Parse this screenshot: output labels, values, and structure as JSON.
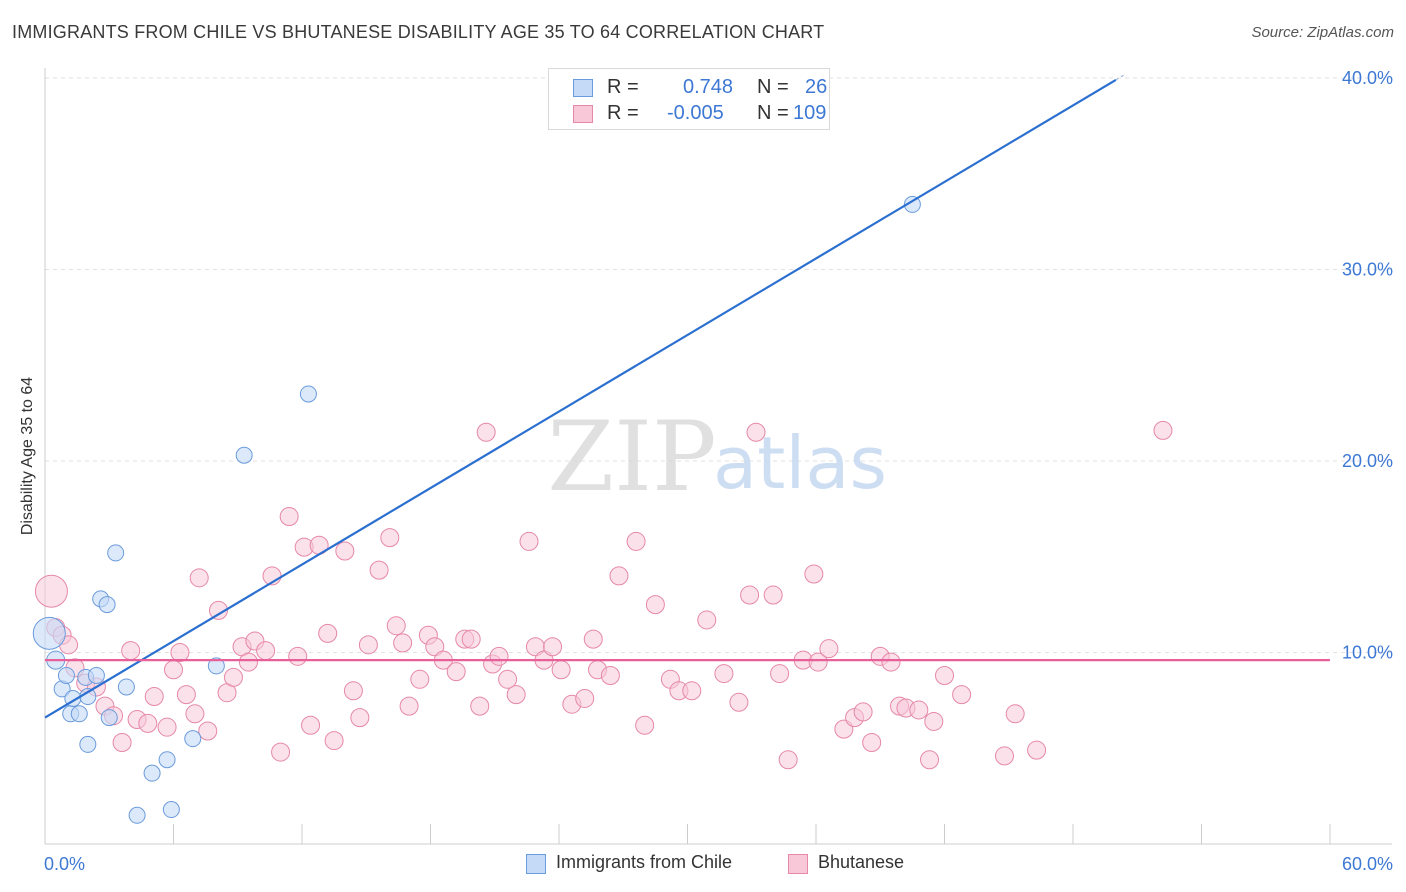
{
  "title": "IMMIGRANTS FROM CHILE VS BHUTANESE DISABILITY AGE 35 TO 64 CORRELATION CHART",
  "source": "Source: ZipAtlas.com",
  "watermark": {
    "zip": "ZIP",
    "atlas": "atlas"
  },
  "colors": {
    "chile_fill": "#c5daf6",
    "chile_stroke": "#6b9bdc",
    "chile_line": "#2b6fd0",
    "bhutan_fill": "#f8c8d8",
    "bhutan_stroke": "#e688a8",
    "bhutan_line": "#e8609a",
    "axis_text": "#3d78d4",
    "grid": "#e2e2e2"
  },
  "stats": {
    "rows": [
      {
        "r_label": "R = ",
        "r_value": "0.748",
        "n_label": "N = ",
        "n_value": "26"
      },
      {
        "r_label": "R = ",
        "r_value": "-0.005",
        "n_label": "N = ",
        "n_value": "109"
      }
    ]
  },
  "legend": {
    "chile": "Immigrants from Chile",
    "bhutan": "Bhutanese"
  },
  "chart_data": {
    "type": "scatter",
    "title": "IMMIGRANTS FROM CHILE VS BHUTANESE DISABILITY AGE 35 TO 64 CORRELATION CHART",
    "xlabel": "",
    "ylabel": "Disability Age 35 to 64",
    "xlim": [
      0,
      60
    ],
    "ylim": [
      0,
      40
    ],
    "x_tick_labels": [
      "0.0%",
      "60.0%"
    ],
    "y_ticks": [
      10,
      20,
      30,
      40
    ],
    "y_tick_labels": [
      "10.0%",
      "20.0%",
      "30.0%",
      "40.0%"
    ],
    "grid": true,
    "series": [
      {
        "name": "Immigrants from Chile",
        "r": 0.748,
        "n": 26,
        "trend": {
          "x": [
            0,
            50
          ],
          "y": [
            6.6,
            39.9
          ]
        },
        "points": [
          [
            0.2,
            11.0,
            16
          ],
          [
            0.5,
            9.6,
            9
          ],
          [
            0.8,
            8.1,
            8
          ],
          [
            1.0,
            8.8,
            8
          ],
          [
            1.2,
            6.8,
            8
          ],
          [
            1.3,
            7.6,
            8
          ],
          [
            1.6,
            6.8,
            8
          ],
          [
            1.9,
            8.7,
            8
          ],
          [
            2.0,
            5.2,
            8
          ],
          [
            2.0,
            7.7,
            8
          ],
          [
            2.4,
            8.8,
            8
          ],
          [
            2.6,
            12.8,
            8
          ],
          [
            2.9,
            12.5,
            8
          ],
          [
            3.0,
            6.6,
            8
          ],
          [
            3.3,
            15.2,
            8
          ],
          [
            3.8,
            8.2,
            8
          ],
          [
            4.3,
            1.5,
            8
          ],
          [
            5.0,
            3.7,
            8
          ],
          [
            5.7,
            4.4,
            8
          ],
          [
            5.9,
            1.8,
            8
          ],
          [
            6.9,
            5.5,
            8
          ],
          [
            8.0,
            9.3,
            8
          ],
          [
            9.3,
            20.3,
            8
          ],
          [
            12.3,
            23.5,
            8
          ],
          [
            40.5,
            33.4,
            8
          ]
        ]
      },
      {
        "name": "Bhutanese",
        "r": -0.005,
        "n": 109,
        "trend": {
          "x": [
            0,
            60
          ],
          "y": [
            9.6,
            9.6
          ]
        },
        "points": [
          [
            0.3,
            13.2,
            16
          ],
          [
            0.5,
            11.3,
            9
          ],
          [
            0.8,
            10.9,
            9
          ],
          [
            1.1,
            10.4,
            9
          ],
          [
            1.4,
            9.2,
            9
          ],
          [
            1.9,
            8.4,
            9
          ],
          [
            2.4,
            8.2,
            9
          ],
          [
            2.8,
            7.2,
            9
          ],
          [
            3.2,
            6.7,
            9
          ],
          [
            3.6,
            5.3,
            9
          ],
          [
            4.0,
            10.1,
            9
          ],
          [
            4.3,
            6.5,
            9
          ],
          [
            4.8,
            6.3,
            9
          ],
          [
            5.1,
            7.7,
            9
          ],
          [
            5.7,
            6.1,
            9
          ],
          [
            6.0,
            9.1,
            9
          ],
          [
            6.3,
            10.0,
            9
          ],
          [
            6.6,
            7.8,
            9
          ],
          [
            7.0,
            6.8,
            9
          ],
          [
            7.2,
            13.9,
            9
          ],
          [
            7.6,
            5.9,
            9
          ],
          [
            8.1,
            12.2,
            9
          ],
          [
            8.5,
            7.9,
            9
          ],
          [
            8.8,
            8.7,
            9
          ],
          [
            9.2,
            10.3,
            9
          ],
          [
            9.5,
            9.5,
            9
          ],
          [
            9.8,
            10.6,
            9
          ],
          [
            10.3,
            10.1,
            9
          ],
          [
            10.6,
            14.0,
            9
          ],
          [
            11.0,
            4.8,
            9
          ],
          [
            11.4,
            17.1,
            9
          ],
          [
            11.8,
            9.8,
            9
          ],
          [
            12.1,
            15.5,
            9
          ],
          [
            12.4,
            6.2,
            9
          ],
          [
            12.8,
            15.6,
            9
          ],
          [
            13.2,
            11.0,
            9
          ],
          [
            13.5,
            5.4,
            9
          ],
          [
            14.0,
            15.3,
            9
          ],
          [
            14.4,
            8.0,
            9
          ],
          [
            14.7,
            6.6,
            9
          ],
          [
            15.1,
            10.4,
            9
          ],
          [
            15.6,
            14.3,
            9
          ],
          [
            16.1,
            16.0,
            9
          ],
          [
            16.4,
            11.4,
            9
          ],
          [
            16.7,
            10.5,
            9
          ],
          [
            17.0,
            7.2,
            9
          ],
          [
            17.5,
            8.6,
            9
          ],
          [
            17.9,
            10.9,
            9
          ],
          [
            18.2,
            10.3,
            9
          ],
          [
            18.6,
            9.6,
            9
          ],
          [
            19.2,
            9.0,
            9
          ],
          [
            19.6,
            10.7,
            9
          ],
          [
            19.9,
            10.7,
            9
          ],
          [
            20.3,
            7.2,
            9
          ],
          [
            20.6,
            21.5,
            9
          ],
          [
            20.9,
            9.4,
            9
          ],
          [
            21.2,
            9.8,
            9
          ],
          [
            21.6,
            8.6,
            9
          ],
          [
            22.0,
            7.8,
            9
          ],
          [
            22.6,
            15.8,
            9
          ],
          [
            22.9,
            10.3,
            9
          ],
          [
            23.3,
            9.6,
            9
          ],
          [
            23.7,
            10.3,
            9
          ],
          [
            24.1,
            9.1,
            9
          ],
          [
            24.6,
            7.3,
            9
          ],
          [
            25.2,
            7.6,
            9
          ],
          [
            25.6,
            10.7,
            9
          ],
          [
            25.8,
            9.1,
            9
          ],
          [
            26.4,
            8.8,
            9
          ],
          [
            26.8,
            14.0,
            9
          ],
          [
            27.6,
            15.8,
            9
          ],
          [
            28.0,
            6.2,
            9
          ],
          [
            28.5,
            12.5,
            9
          ],
          [
            29.2,
            8.6,
            9
          ],
          [
            29.6,
            8.0,
            9
          ],
          [
            30.2,
            8.0,
            9
          ],
          [
            30.9,
            11.7,
            9
          ],
          [
            31.7,
            8.9,
            9
          ],
          [
            32.4,
            7.4,
            9
          ],
          [
            32.9,
            13.0,
            9
          ],
          [
            33.2,
            21.5,
            9
          ],
          [
            34.0,
            13.0,
            9
          ],
          [
            34.3,
            8.9,
            9
          ],
          [
            34.7,
            4.4,
            9
          ],
          [
            35.4,
            9.6,
            9
          ],
          [
            35.9,
            14.1,
            9
          ],
          [
            36.1,
            9.5,
            9
          ],
          [
            36.6,
            10.2,
            9
          ],
          [
            37.3,
            6.0,
            9
          ],
          [
            37.8,
            6.6,
            9
          ],
          [
            38.2,
            6.9,
            9
          ],
          [
            38.6,
            5.3,
            9
          ],
          [
            39.0,
            9.8,
            9
          ],
          [
            39.5,
            9.5,
            9
          ],
          [
            39.9,
            7.2,
            9
          ],
          [
            40.2,
            7.1,
            9
          ],
          [
            40.8,
            7.0,
            9
          ],
          [
            41.3,
            4.4,
            9
          ],
          [
            41.5,
            6.4,
            9
          ],
          [
            42.0,
            8.8,
            9
          ],
          [
            42.8,
            7.8,
            9
          ],
          [
            44.8,
            4.6,
            9
          ],
          [
            45.3,
            6.8,
            9
          ],
          [
            46.3,
            4.9,
            9
          ],
          [
            52.2,
            21.6,
            9
          ]
        ]
      }
    ]
  }
}
